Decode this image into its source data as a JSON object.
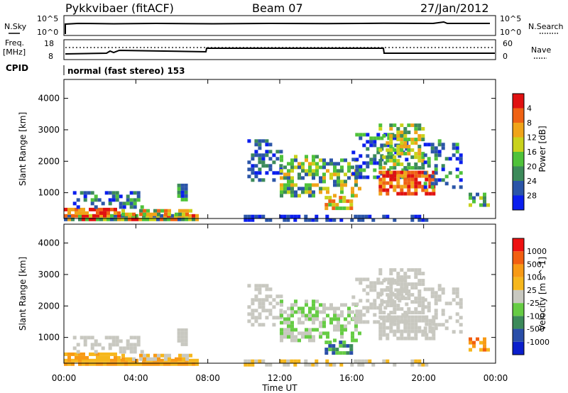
{
  "header": {
    "station": "Pykkvibaer (fitACF)",
    "beam": "Beam 07",
    "date": "27/Jan/2012"
  },
  "noise_panel": {
    "left_label": "N.Sky",
    "right_label": "N.Search",
    "left_ticks": [
      "10^5",
      "10^0"
    ],
    "right_ticks": [
      "10^5",
      "10^0"
    ]
  },
  "freq_panel": {
    "left_label_top": "Freq.",
    "left_label_bottom": "[MHz]",
    "right_label": "Nave",
    "left_ticks": [
      "18",
      "8"
    ],
    "right_ticks": [
      "60",
      "0"
    ]
  },
  "cpid": {
    "label": "CPID",
    "mode": "normal (fast stereo) 153"
  },
  "colors": {
    "power": [
      "#0a1eee",
      "#2b55a8",
      "#3c8a5a",
      "#4fc23a",
      "#c9d21c",
      "#f0a419",
      "#ef6214",
      "#e01111"
    ],
    "velocity": [
      "#ee1111",
      "#f25f11",
      "#f89a15",
      "#f6b71d",
      "#c8c8c0",
      "#66cc44",
      "#3c8a5a",
      "#2a4ea8",
      "#0a1ecc"
    ]
  },
  "chart_data": [
    {
      "type": "heatmap",
      "quantity": "power",
      "ylabel": "Slant Range [km]",
      "yticks": [
        1000,
        2000,
        3000,
        4000
      ],
      "xticks": [
        "00:00",
        "04:00",
        "08:00",
        "12:00",
        "16:00",
        "20:00",
        "00:00"
      ],
      "x_range_hours": [
        0,
        24
      ],
      "y_range_km": [
        180,
        4600
      ],
      "colorbar": {
        "label": "Power [dB]",
        "ticks": [
          "4",
          "8",
          "12",
          "16",
          "20",
          "24",
          "28"
        ],
        "range": [
          0,
          32
        ],
        "levels": 8
      }
    },
    {
      "type": "heatmap",
      "quantity": "velocity",
      "ylabel": "Slant Range [km]",
      "yticks": [
        1000,
        2000,
        3000,
        4000
      ],
      "xticks": [
        "00:00",
        "04:00",
        "08:00",
        "12:00",
        "16:00",
        "20:00",
        "00:00"
      ],
      "xlabel": "Time UT",
      "x_range_hours": [
        0,
        24
      ],
      "y_range_km": [
        180,
        4600
      ],
      "colorbar": {
        "label": "Velocity [m s^-1]",
        "ticks": [
          "1000",
          "500",
          "100",
          "25",
          "-25",
          "-100",
          "-500",
          "-1000"
        ],
        "levels": 9
      }
    }
  ]
}
